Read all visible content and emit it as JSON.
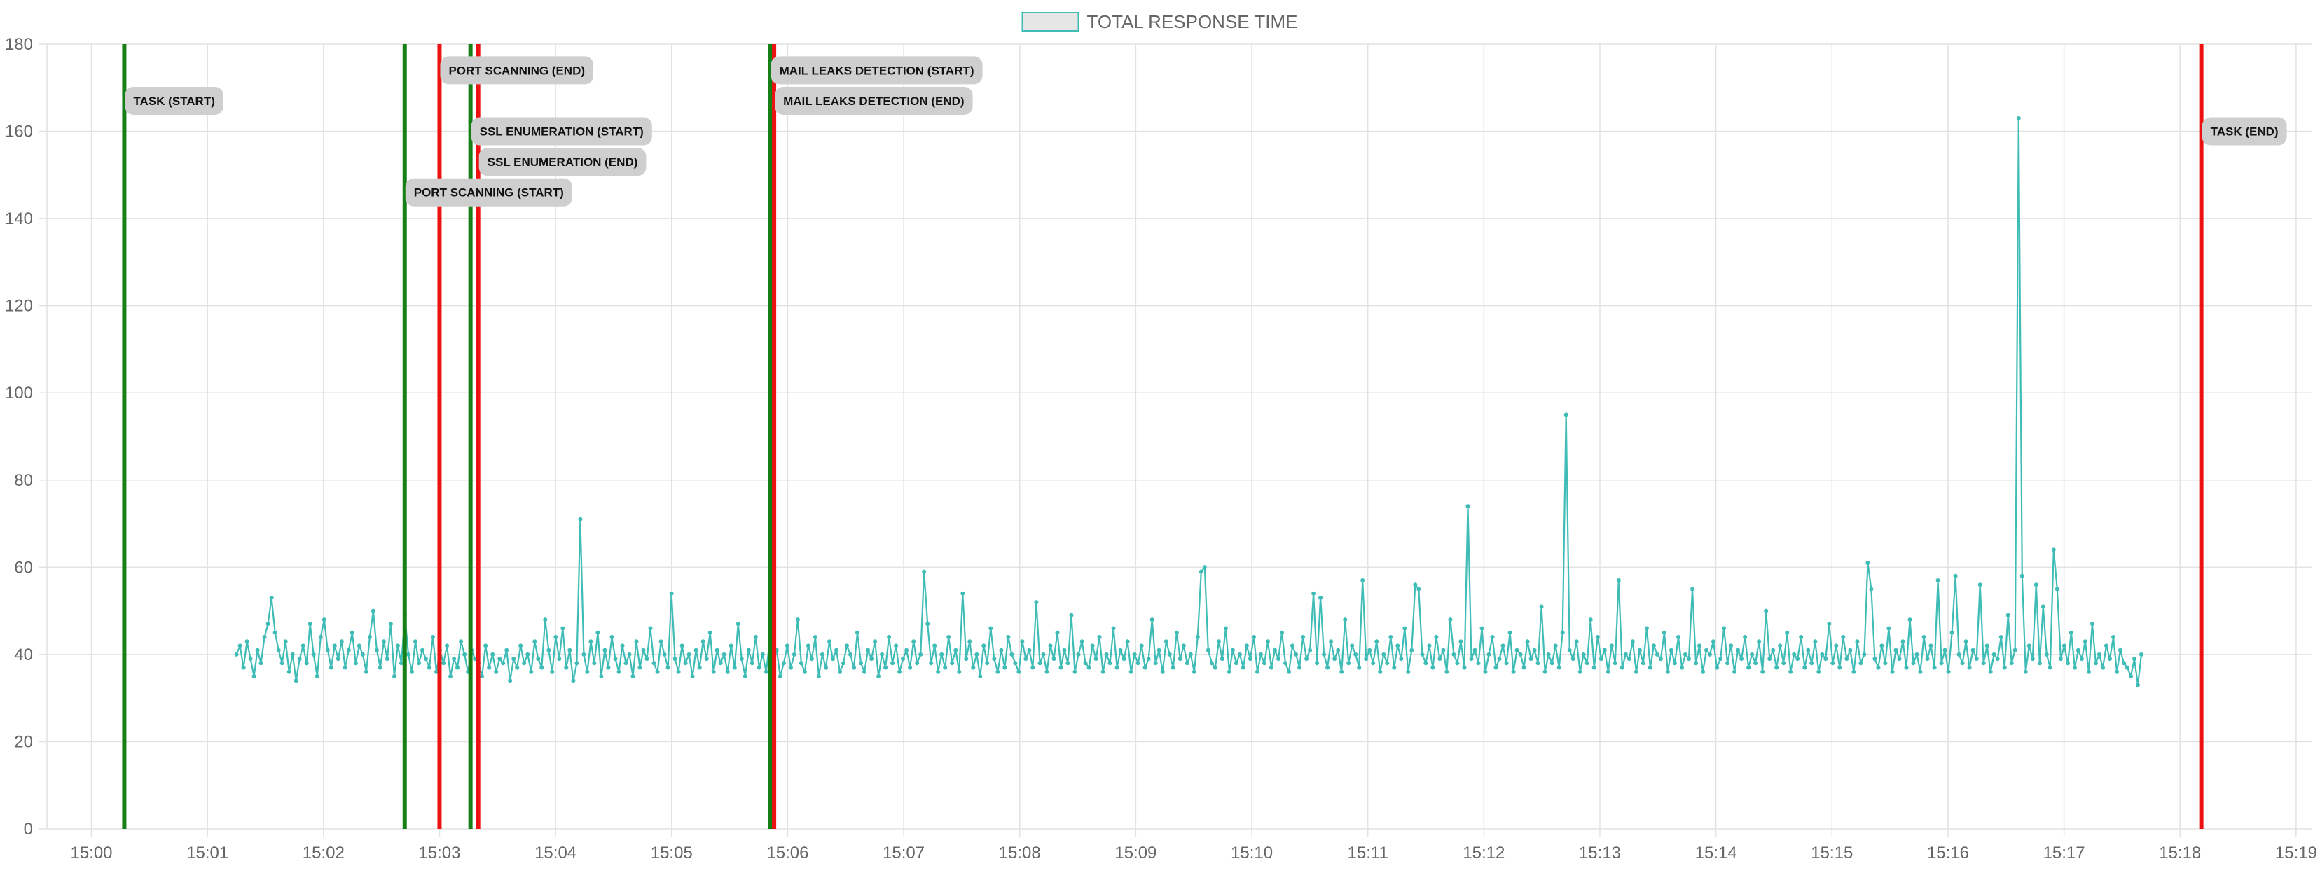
{
  "chart_data": {
    "type": "line",
    "title": "",
    "xlabel": "",
    "ylabel": "",
    "legend": {
      "position": "top-center",
      "items": [
        {
          "label": "TOTAL RESPONSE TIME",
          "fill": "#e6e6e6",
          "stroke": "#3fbcb6"
        }
      ]
    },
    "grid": true,
    "x_range": [
      "14:59:37",
      "15:19:08"
    ],
    "ylim": [
      0,
      180
    ],
    "y_ticks": [
      0,
      20,
      40,
      60,
      80,
      100,
      120,
      140,
      160,
      180
    ],
    "x_ticks": [
      "15:00",
      "15:01",
      "15:02",
      "15:03",
      "15:04",
      "15:05",
      "15:06",
      "15:07",
      "15:08",
      "15:09",
      "15:10",
      "15:11",
      "15:12",
      "15:13",
      "15:14",
      "15:15",
      "15:16",
      "15:17",
      "15:18",
      "15:19"
    ],
    "series": [
      {
        "name": "TOTAL RESPONSE TIME",
        "color": "#3fbcb6",
        "start_time": "15:01:15",
        "end_time": "15:17:40",
        "values": [
          40,
          42,
          37,
          43,
          39,
          35,
          41,
          38,
          44,
          47,
          53,
          45,
          41,
          38,
          43,
          36,
          40,
          34,
          39,
          42,
          38,
          47,
          40,
          35,
          44,
          48,
          41,
          37,
          42,
          39,
          43,
          37,
          41,
          45,
          38,
          42,
          40,
          36,
          44,
          50,
          41,
          37,
          43,
          39,
          47,
          35,
          42,
          38,
          49,
          40,
          36,
          43,
          38,
          41,
          39,
          37,
          44,
          36,
          41,
          38,
          42,
          35,
          39,
          37,
          43,
          40,
          36,
          41,
          39,
          38,
          35,
          42,
          37,
          40,
          36,
          39,
          38,
          41,
          34,
          39,
          37,
          42,
          38,
          40,
          36,
          43,
          39,
          37,
          48,
          41,
          36,
          44,
          39,
          46,
          37,
          41,
          34,
          38,
          71,
          40,
          36,
          43,
          38,
          45,
          35,
          41,
          37,
          44,
          39,
          36,
          42,
          38,
          40,
          35,
          43,
          37,
          41,
          39,
          46,
          38,
          36,
          43,
          40,
          37,
          54,
          39,
          36,
          42,
          38,
          40,
          35,
          41,
          37,
          43,
          39,
          45,
          36,
          41,
          38,
          40,
          36,
          42,
          37,
          47,
          39,
          35,
          41,
          38,
          44,
          37,
          40,
          36,
          43,
          39,
          41,
          35,
          38,
          42,
          37,
          40,
          48,
          38,
          36,
          42,
          39,
          44,
          35,
          40,
          37,
          43,
          39,
          41,
          36,
          38,
          42,
          40,
          37,
          45,
          38,
          36,
          41,
          39,
          43,
          35,
          40,
          37,
          44,
          38,
          42,
          36,
          39,
          41,
          37,
          43,
          38,
          40,
          59,
          47,
          38,
          42,
          36,
          40,
          37,
          44,
          38,
          41,
          36,
          54,
          39,
          43,
          37,
          40,
          35,
          42,
          38,
          46,
          39,
          36,
          41,
          37,
          44,
          40,
          38,
          36,
          43,
          39,
          41,
          37,
          52,
          38,
          40,
          36,
          42,
          39,
          45,
          37,
          41,
          38,
          49,
          36,
          40,
          43,
          38,
          37,
          42,
          39,
          44,
          36,
          40,
          38,
          46,
          37,
          41,
          39,
          43,
          36,
          40,
          38,
          42,
          37,
          39,
          48,
          38,
          41,
          36,
          43,
          40,
          37,
          45,
          39,
          42,
          38,
          40,
          36,
          44,
          59,
          60,
          41,
          38,
          37,
          43,
          39,
          46,
          36,
          41,
          38,
          40,
          37,
          42,
          39,
          44,
          36,
          40,
          38,
          43,
          37,
          41,
          39,
          45,
          38,
          36,
          42,
          40,
          37,
          44,
          39,
          41,
          54,
          38,
          53,
          40,
          37,
          43,
          39,
          41,
          36,
          48,
          38,
          42,
          40,
          37,
          57,
          39,
          41,
          38,
          43,
          36,
          40,
          38,
          44,
          37,
          42,
          39,
          46,
          36,
          41,
          56,
          55,
          40,
          38,
          42,
          37,
          44,
          39,
          41,
          36,
          48,
          40,
          38,
          43,
          37,
          74,
          39,
          41,
          38,
          46,
          36,
          40,
          44,
          37,
          39,
          42,
          38,
          45,
          36,
          41,
          40,
          37,
          43,
          39,
          41,
          38,
          51,
          36,
          40,
          38,
          42,
          37,
          45,
          95,
          41,
          39,
          43,
          36,
          40,
          38,
          48,
          37,
          44,
          39,
          41,
          36,
          42,
          38,
          57,
          37,
          40,
          39,
          43,
          36,
          41,
          38,
          46,
          37,
          42,
          40,
          39,
          45,
          36,
          41,
          38,
          44,
          37,
          40,
          39,
          55,
          38,
          42,
          36,
          41,
          40,
          43,
          37,
          39,
          46,
          38,
          42,
          36,
          41,
          39,
          44,
          37,
          40,
          38,
          43,
          36,
          50,
          39,
          41,
          37,
          42,
          38,
          45,
          36,
          40,
          39,
          44,
          37,
          41,
          38,
          43,
          36,
          40,
          39,
          47,
          38,
          42,
          37,
          44,
          39,
          41,
          36,
          43,
          38,
          40,
          61,
          55,
          39,
          37,
          42,
          38,
          46,
          36,
          41,
          39,
          43,
          37,
          48,
          38,
          40,
          36,
          44,
          39,
          42,
          37,
          57,
          38,
          41,
          36,
          45,
          58,
          40,
          38,
          43,
          37,
          41,
          39,
          56,
          38,
          42,
          36,
          40,
          39,
          44,
          37,
          49,
          38,
          41,
          163,
          58,
          36,
          42,
          39,
          56,
          38,
          51,
          40,
          37,
          64,
          55,
          39,
          42,
          38,
          45,
          37,
          41,
          39,
          43,
          36,
          47,
          38,
          40,
          37,
          42,
          39,
          44,
          36,
          41,
          38,
          37,
          35,
          39,
          33,
          40
        ]
      }
    ],
    "markers": [
      {
        "label": "TASK (START)",
        "time": "15:00:17",
        "color": "#168016",
        "label_y": 167
      },
      {
        "label": "PORT SCANNING (START)",
        "time": "15:02:42",
        "color": "#168016",
        "label_y": 146
      },
      {
        "label": "PORT SCANNING (END)",
        "time": "15:03:00",
        "color": "#ee1111",
        "label_y": 174
      },
      {
        "label": "SSL ENUMERATION (START)",
        "time": "15:03:16",
        "color": "#168016",
        "label_y": 160
      },
      {
        "label": "SSL ENUMERATION (END)",
        "time": "15:03:20",
        "color": "#ee1111",
        "label_y": 153
      },
      {
        "label": "MAIL LEAKS DETECTION (START)",
        "time": "15:05:51",
        "color": "#168016",
        "label_y": 174
      },
      {
        "label": "MAIL LEAKS DETECTION (END)",
        "time": "15:05:53",
        "color": "#ee1111",
        "label_y": 167
      },
      {
        "label": "TASK (END)",
        "time": "15:18:11",
        "color": "#ee1111",
        "label_y": 160
      }
    ]
  }
}
